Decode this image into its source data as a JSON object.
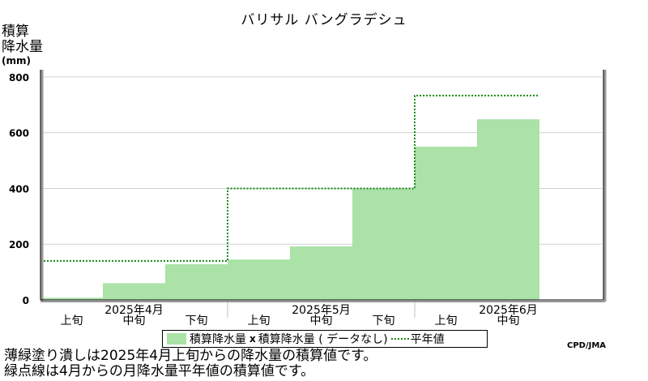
{
  "header": {
    "title": "バリサル バングラデシュ",
    "ylabel_line1": "積算",
    "ylabel_line2": "降水量",
    "ylabel_unit": "(mm)"
  },
  "chart_data": {
    "type": "bar",
    "categories": [
      "上旬",
      "中旬",
      "下旬",
      "上旬",
      "中旬",
      "下旬",
      "上旬",
      "中旬"
    ],
    "month_labels": [
      "2025年4月",
      "2025年5月",
      "2025年6月"
    ],
    "yticks": [
      "0",
      "200",
      "400",
      "600",
      "800"
    ],
    "ylim": [
      0,
      820
    ],
    "series": [
      {
        "name": "積算降水量",
        "values": [
          8,
          60,
          128,
          145,
          192,
          398,
          550,
          648
        ],
        "color": "#aae2a8"
      },
      {
        "name": "平年値",
        "values": [
          140,
          140,
          140,
          400,
          400,
          400,
          733,
          733
        ],
        "color": "#118811"
      }
    ],
    "legend": {
      "item1": "積算降水量",
      "item2_marker": "x",
      "item2": "積算降水量 ( データなし)",
      "item3": "平年値"
    },
    "credit": "CPD/JMA",
    "notes": [
      "薄緑塗り潰しは2025年4月上旬からの降水量の積算値です。",
      "緑点線は4月からの月降水量平年値の積算値です。"
    ]
  }
}
